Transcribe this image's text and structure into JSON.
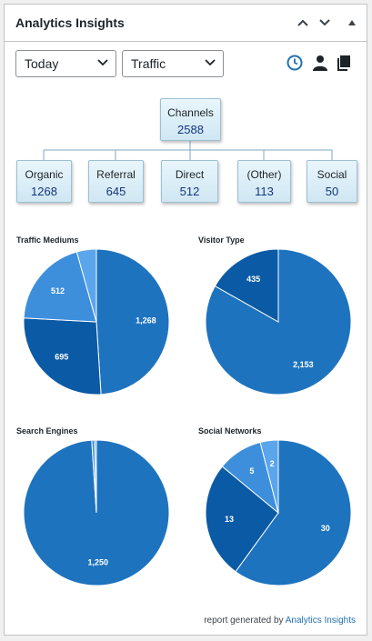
{
  "widget": {
    "title": "Analytics Insights"
  },
  "controls": {
    "period": {
      "selected": "Today"
    },
    "report": {
      "selected": "Traffic"
    }
  },
  "icons": {
    "collapse_up": "chevron-up-icon",
    "collapse_down": "chevron-down-icon",
    "toggle": "triangle-up-icon",
    "realtime": "clock-icon",
    "user": "person-icon",
    "copy": "copy-icon"
  },
  "tree": {
    "root": {
      "label": "Channels",
      "value": "2588"
    },
    "children": [
      {
        "label": "Organic",
        "value": "1268"
      },
      {
        "label": "Referral",
        "value": "645"
      },
      {
        "label": "Direct",
        "value": "512"
      },
      {
        "label": "(Other)",
        "value": "113"
      },
      {
        "label": "Social",
        "value": "50"
      }
    ]
  },
  "chart_data": [
    {
      "type": "pie",
      "title": "Traffic Mediums",
      "values": [
        1268,
        695,
        512,
        113
      ],
      "labels": [
        "1,268",
        "695",
        "512",
        ""
      ]
    },
    {
      "type": "pie",
      "title": "Visitor Type",
      "values": [
        2153,
        435
      ],
      "labels": [
        "2,153",
        "435"
      ]
    },
    {
      "type": "pie",
      "title": "Search Engines",
      "values": [
        1250,
        8,
        5
      ],
      "labels": [
        "1,250",
        "",
        ""
      ]
    },
    {
      "type": "pie",
      "title": "Social Networks",
      "values": [
        30,
        13,
        5,
        2
      ],
      "labels": [
        "30",
        "13",
        "5",
        "2"
      ]
    }
  ],
  "colors": {
    "slices": [
      "#1e73be",
      "#0b5aa5",
      "#3d8fdc",
      "#5ba5ec",
      "#2b80cf"
    ],
    "accent": "#2271b1"
  },
  "footer": {
    "prefix": "report generated by",
    "link": "Analytics Insights"
  }
}
